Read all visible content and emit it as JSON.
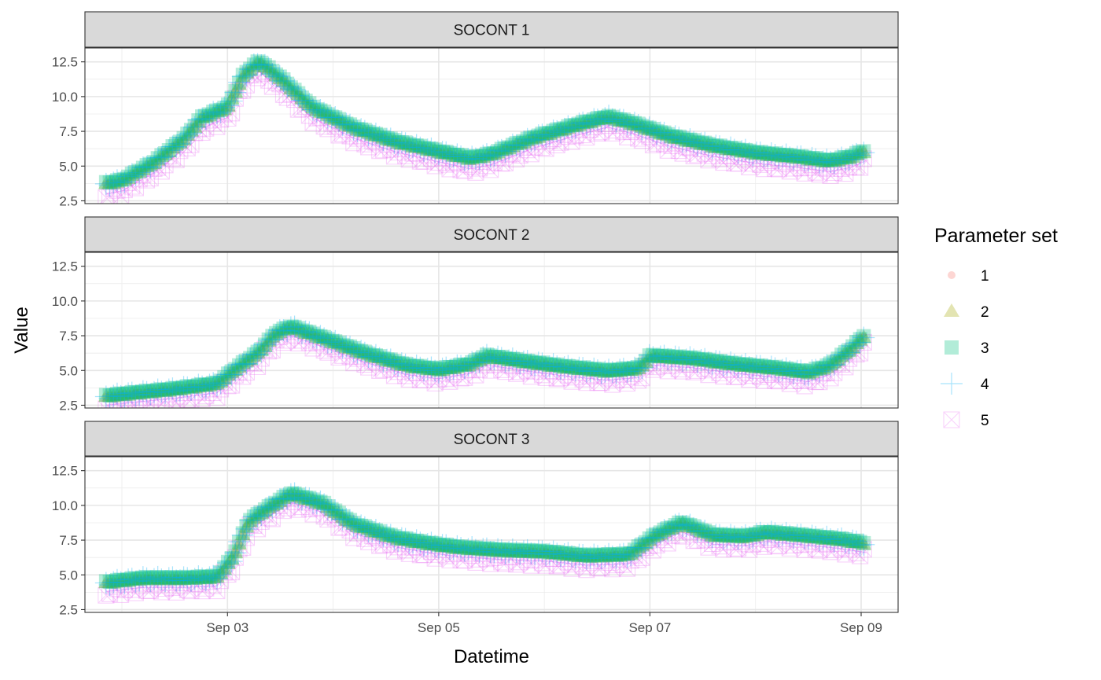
{
  "chart_data": {
    "type": "scatter",
    "xlabel": "Datetime",
    "ylabel": "Value",
    "x_ticks": [
      "Sep 03",
      "Sep 05",
      "Sep 07",
      "Sep 09"
    ],
    "x_tick_values": [
      3,
      5,
      7,
      9
    ],
    "xlim": [
      1.65,
      9.35
    ],
    "ylim": [
      2.3,
      13.5
    ],
    "y_ticks": [
      2.5,
      5.0,
      7.5,
      10.0,
      12.5
    ],
    "y_tick_labels": [
      "2.5",
      "5.0",
      "7.5",
      "10.0",
      "12.5"
    ],
    "grid": true,
    "legend": {
      "title": "Parameter set",
      "position": "right",
      "entries": [
        {
          "label": "1",
          "shape": "circle",
          "color": "#F8766D"
        },
        {
          "label": "2",
          "shape": "triangle",
          "color": "#A3A500"
        },
        {
          "label": "3",
          "shape": "square",
          "color": "#00BF7D"
        },
        {
          "label": "4",
          "shape": "plus",
          "color": "#00B0F6"
        },
        {
          "label": "5",
          "shape": "boxed-x",
          "color": "#E76BF3"
        }
      ]
    },
    "panels": [
      {
        "title": "SOCONT 1",
        "curve": [
          [
            1.85,
            3.7
          ],
          [
            2.0,
            3.9
          ],
          [
            2.3,
            5.2
          ],
          [
            2.6,
            7.0
          ],
          [
            2.75,
            8.4
          ],
          [
            3.0,
            9.2
          ],
          [
            3.15,
            11.5
          ],
          [
            3.3,
            12.5
          ],
          [
            3.5,
            11.3
          ],
          [
            3.8,
            9.2
          ],
          [
            4.2,
            7.7
          ],
          [
            4.6,
            6.7
          ],
          [
            5.0,
            6.0
          ],
          [
            5.3,
            5.5
          ],
          [
            5.5,
            5.8
          ],
          [
            5.9,
            7.0
          ],
          [
            6.3,
            7.9
          ],
          [
            6.6,
            8.5
          ],
          [
            6.85,
            8.0
          ],
          [
            7.2,
            7.1
          ],
          [
            7.6,
            6.4
          ],
          [
            8.0,
            5.9
          ],
          [
            8.4,
            5.6
          ],
          [
            8.7,
            5.3
          ],
          [
            8.9,
            5.6
          ],
          [
            9.05,
            6.1
          ]
        ],
        "offsets": [
          0,
          0,
          0.1,
          0,
          -0.7
        ]
      },
      {
        "title": "SOCONT 2",
        "curve": [
          [
            1.85,
            3.1
          ],
          [
            2.1,
            3.3
          ],
          [
            2.5,
            3.6
          ],
          [
            2.9,
            4.0
          ],
          [
            3.1,
            5.2
          ],
          [
            3.3,
            6.3
          ],
          [
            3.45,
            7.6
          ],
          [
            3.6,
            8.1
          ],
          [
            3.9,
            7.3
          ],
          [
            4.3,
            6.2
          ],
          [
            4.7,
            5.3
          ],
          [
            5.0,
            5.0
          ],
          [
            5.3,
            5.4
          ],
          [
            5.45,
            6.0
          ],
          [
            5.8,
            5.6
          ],
          [
            6.2,
            5.2
          ],
          [
            6.6,
            4.9
          ],
          [
            6.9,
            5.1
          ],
          [
            7.0,
            6.0
          ],
          [
            7.4,
            5.8
          ],
          [
            7.8,
            5.4
          ],
          [
            8.2,
            5.1
          ],
          [
            8.5,
            4.8
          ],
          [
            8.7,
            5.3
          ],
          [
            8.9,
            6.5
          ],
          [
            9.05,
            7.6
          ]
        ],
        "offsets": [
          0,
          0,
          0.1,
          0,
          -0.6
        ]
      },
      {
        "title": "SOCONT 3",
        "curve": [
          [
            1.85,
            4.4
          ],
          [
            2.2,
            4.7
          ],
          [
            2.6,
            4.7
          ],
          [
            2.9,
            4.8
          ],
          [
            3.05,
            6.2
          ],
          [
            3.2,
            8.8
          ],
          [
            3.35,
            9.6
          ],
          [
            3.6,
            10.8
          ],
          [
            3.9,
            10.1
          ],
          [
            4.2,
            8.6
          ],
          [
            4.6,
            7.6
          ],
          [
            4.9,
            7.2
          ],
          [
            5.2,
            6.9
          ],
          [
            5.6,
            6.7
          ],
          [
            6.0,
            6.6
          ],
          [
            6.4,
            6.3
          ],
          [
            6.8,
            6.4
          ],
          [
            7.05,
            7.8
          ],
          [
            7.3,
            8.7
          ],
          [
            7.6,
            7.8
          ],
          [
            7.9,
            7.7
          ],
          [
            8.1,
            8.0
          ],
          [
            8.4,
            7.8
          ],
          [
            8.8,
            7.5
          ],
          [
            9.05,
            7.2
          ]
        ],
        "offsets": [
          0,
          0,
          0.1,
          0,
          -0.6
        ]
      }
    ]
  }
}
